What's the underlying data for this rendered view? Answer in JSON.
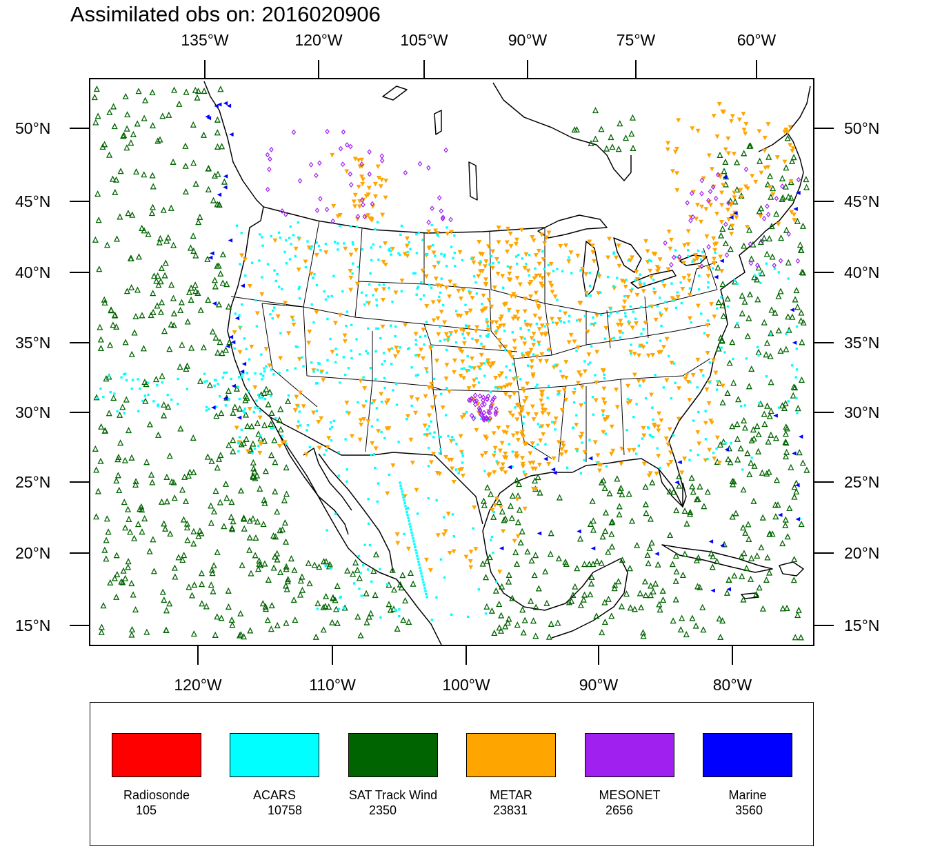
{
  "title": "Assimilated obs on: 2016020906",
  "map": {
    "projection": "Lambert conformal (CONUS)",
    "top_lon_labels": [
      "135°W",
      "120°W",
      "105°W",
      "90°W",
      "75°W",
      "60°W"
    ],
    "bottom_lon_labels": [
      "120°W",
      "110°W",
      "100°W",
      "90°W",
      "80°W"
    ],
    "lat_labels": [
      "50°N",
      "45°N",
      "40°N",
      "35°N",
      "30°N",
      "25°N",
      "20°N",
      "15°N"
    ]
  },
  "colors": {
    "radiosonde": "#ff0000",
    "acars": "#00ffff",
    "sat_track_wind": "#006400",
    "metar": "#ffa500",
    "mesonet": "#a020f0",
    "marine": "#0000ff"
  },
  "legend": [
    {
      "name": "Radiosonde",
      "count": "105",
      "color": "#ff0000",
      "marker": "circle"
    },
    {
      "name": "ACARS",
      "count": "10758",
      "color": "#00ffff",
      "marker": "square"
    },
    {
      "name": "SAT Track Wind",
      "count": "2350",
      "color": "#006400",
      "marker": "triangle-up-hollow"
    },
    {
      "name": "METAR",
      "count": "23831",
      "color": "#ffa500",
      "marker": "triangle-down"
    },
    {
      "name": "MESONET",
      "count": "2656",
      "color": "#a020f0",
      "marker": "diamond"
    },
    {
      "name": "Marine",
      "count": "3560",
      "color": "#0000ff",
      "marker": "triangle-left"
    }
  ]
}
